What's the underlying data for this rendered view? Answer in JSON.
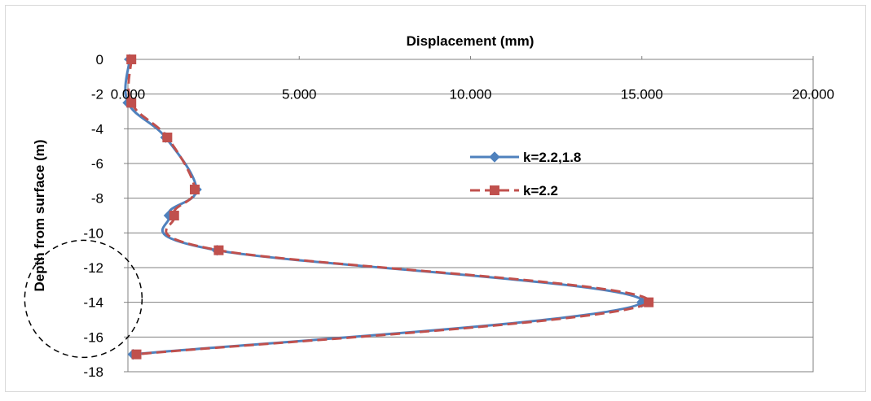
{
  "chart_data": {
    "type": "line",
    "title": "Displacement (mm)",
    "xlabel": "",
    "ylabel": "Depth from surface (m)",
    "xlim": [
      0,
      20
    ],
    "ylim": [
      -18,
      0
    ],
    "x_ticks": [
      "0.000",
      "5.000",
      "10.000",
      "15.000",
      "20.000"
    ],
    "y_ticks": [
      "0",
      "-2",
      "-4",
      "-6",
      "-8",
      "-10",
      "-12",
      "-14",
      "-16",
      "-18"
    ],
    "x_axis_position": "top",
    "grid": "horizontal",
    "legend_position": "right-middle",
    "series": [
      {
        "name": "k=2.2,1.8",
        "color": "#4F81BD",
        "marker": "diamond",
        "line_style": "solid",
        "points": [
          {
            "x": 0.05,
            "y": 0
          },
          {
            "x": 0.0,
            "y": -2.5
          },
          {
            "x": 1.1,
            "y": -4.5
          },
          {
            "x": 2.0,
            "y": -7.5
          },
          {
            "x": 1.2,
            "y": -9
          },
          {
            "x": 2.6,
            "y": -11
          },
          {
            "x": 15.0,
            "y": -14
          },
          {
            "x": 0.15,
            "y": -17
          }
        ]
      },
      {
        "name": "k=2.2",
        "color": "#C0504D",
        "marker": "square",
        "line_style": "dashed",
        "points": [
          {
            "x": 0.1,
            "y": 0
          },
          {
            "x": 0.1,
            "y": -2.5
          },
          {
            "x": 1.15,
            "y": -4.5
          },
          {
            "x": 1.95,
            "y": -7.5
          },
          {
            "x": 1.35,
            "y": -9
          },
          {
            "x": 2.65,
            "y": -11
          },
          {
            "x": 15.2,
            "y": -14
          },
          {
            "x": 0.25,
            "y": -17
          }
        ]
      }
    ],
    "annotations": [
      {
        "shape": "dashed-circle",
        "center": {
          "x": -1.3,
          "y": -13.8
        },
        "radius_x_units": 1.2
      }
    ]
  }
}
